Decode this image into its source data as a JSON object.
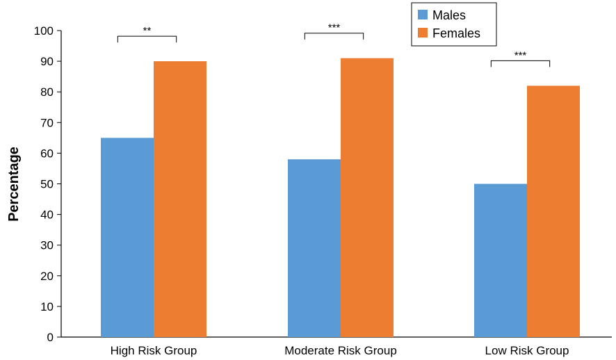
{
  "chart_data": {
    "type": "bar",
    "categories": [
      "High Risk Group",
      "Moderate Risk Group",
      "Low Risk Group"
    ],
    "series": [
      {
        "name": "Males",
        "values": [
          65,
          58,
          50
        ],
        "color": "#5b9bd5"
      },
      {
        "name": "Females",
        "values": [
          90,
          91,
          82
        ],
        "color": "#ed7d31"
      }
    ],
    "ylabel": "Percentage",
    "xlabel": "",
    "ylim": [
      0,
      100
    ],
    "yticks": [
      0,
      10,
      20,
      30,
      40,
      50,
      60,
      70,
      80,
      90,
      100
    ],
    "significance": [
      "**",
      "***",
      "***"
    ],
    "legend_position": "top-right",
    "grid": false
  }
}
